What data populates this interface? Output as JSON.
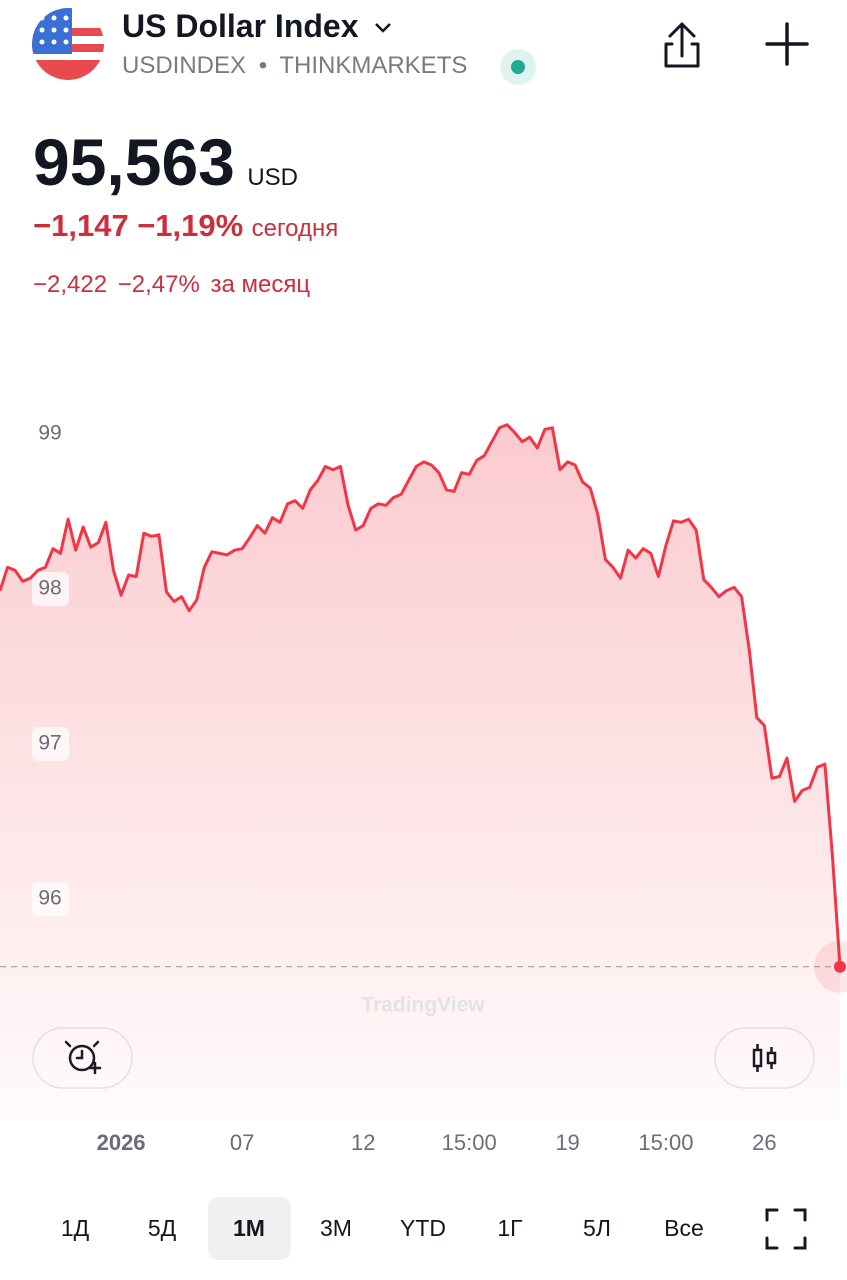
{
  "header": {
    "title": "US Dollar Index",
    "symbol": "USDINDEX",
    "separator": "•",
    "exchange": "THINKMARKETS",
    "price": "95,563",
    "currency": "USD",
    "change": "−1,147",
    "change_pct": "−1,19%",
    "change_period": "сегодня",
    "month_change": "−2,422",
    "month_change_pct": "−2,47%",
    "month_period": "за месяц"
  },
  "chart_data": {
    "type": "line",
    "color": "#f23645",
    "watermark": "TradingView",
    "values": [
      97.99,
      98.14,
      98.12,
      98.05,
      98.07,
      98.12,
      98.14,
      98.26,
      98.23,
      98.45,
      98.25,
      98.4,
      98.27,
      98.3,
      98.43,
      98.12,
      97.96,
      98.09,
      98.08,
      98.36,
      98.34,
      98.35,
      97.98,
      97.92,
      97.95,
      97.86,
      97.93,
      98.14,
      98.24,
      98.23,
      98.22,
      98.25,
      98.26,
      98.33,
      98.41,
      98.36,
      98.46,
      98.43,
      98.55,
      98.57,
      98.52,
      98.64,
      98.7,
      98.79,
      98.77,
      98.79,
      98.54,
      98.38,
      98.41,
      98.52,
      98.55,
      98.54,
      98.59,
      98.61,
      98.7,
      98.79,
      98.82,
      98.8,
      98.75,
      98.64,
      98.63,
      98.75,
      98.74,
      98.83,
      98.86,
      98.95,
      99.04,
      99.06,
      99.01,
      98.95,
      98.98,
      98.91,
      99.03,
      99.04,
      98.77,
      98.82,
      98.8,
      98.69,
      98.65,
      98.48,
      98.19,
      98.14,
      98.07,
      98.25,
      98.2,
      98.26,
      98.23,
      98.08,
      98.28,
      98.44,
      98.43,
      98.45,
      98.38,
      98.06,
      98.01,
      97.95,
      97.99,
      98.01,
      97.95,
      97.61,
      97.17,
      97.12,
      96.78,
      96.79,
      96.91,
      96.63,
      96.7,
      96.72,
      96.85,
      96.87,
      96.28,
      95.563
    ],
    "xlim": [
      0,
      111
    ],
    "xticks": [
      {
        "value": 16,
        "label": "2026"
      },
      {
        "value": 32,
        "label": "07"
      },
      {
        "value": 48,
        "label": "12"
      },
      {
        "value": 62,
        "label": "15:00"
      },
      {
        "value": 75,
        "label": "19"
      },
      {
        "value": 88,
        "label": "15:00"
      },
      {
        "value": 101,
        "label": "26"
      }
    ],
    "ylim": [
      95,
      99.8
    ],
    "yticks": [
      96,
      97,
      98,
      99
    ],
    "grid": false
  },
  "ranges": {
    "items": [
      "1Д",
      "5Д",
      "1М",
      "3М",
      "YTD",
      "1Г",
      "5Л",
      "Все"
    ],
    "selected": 2
  }
}
